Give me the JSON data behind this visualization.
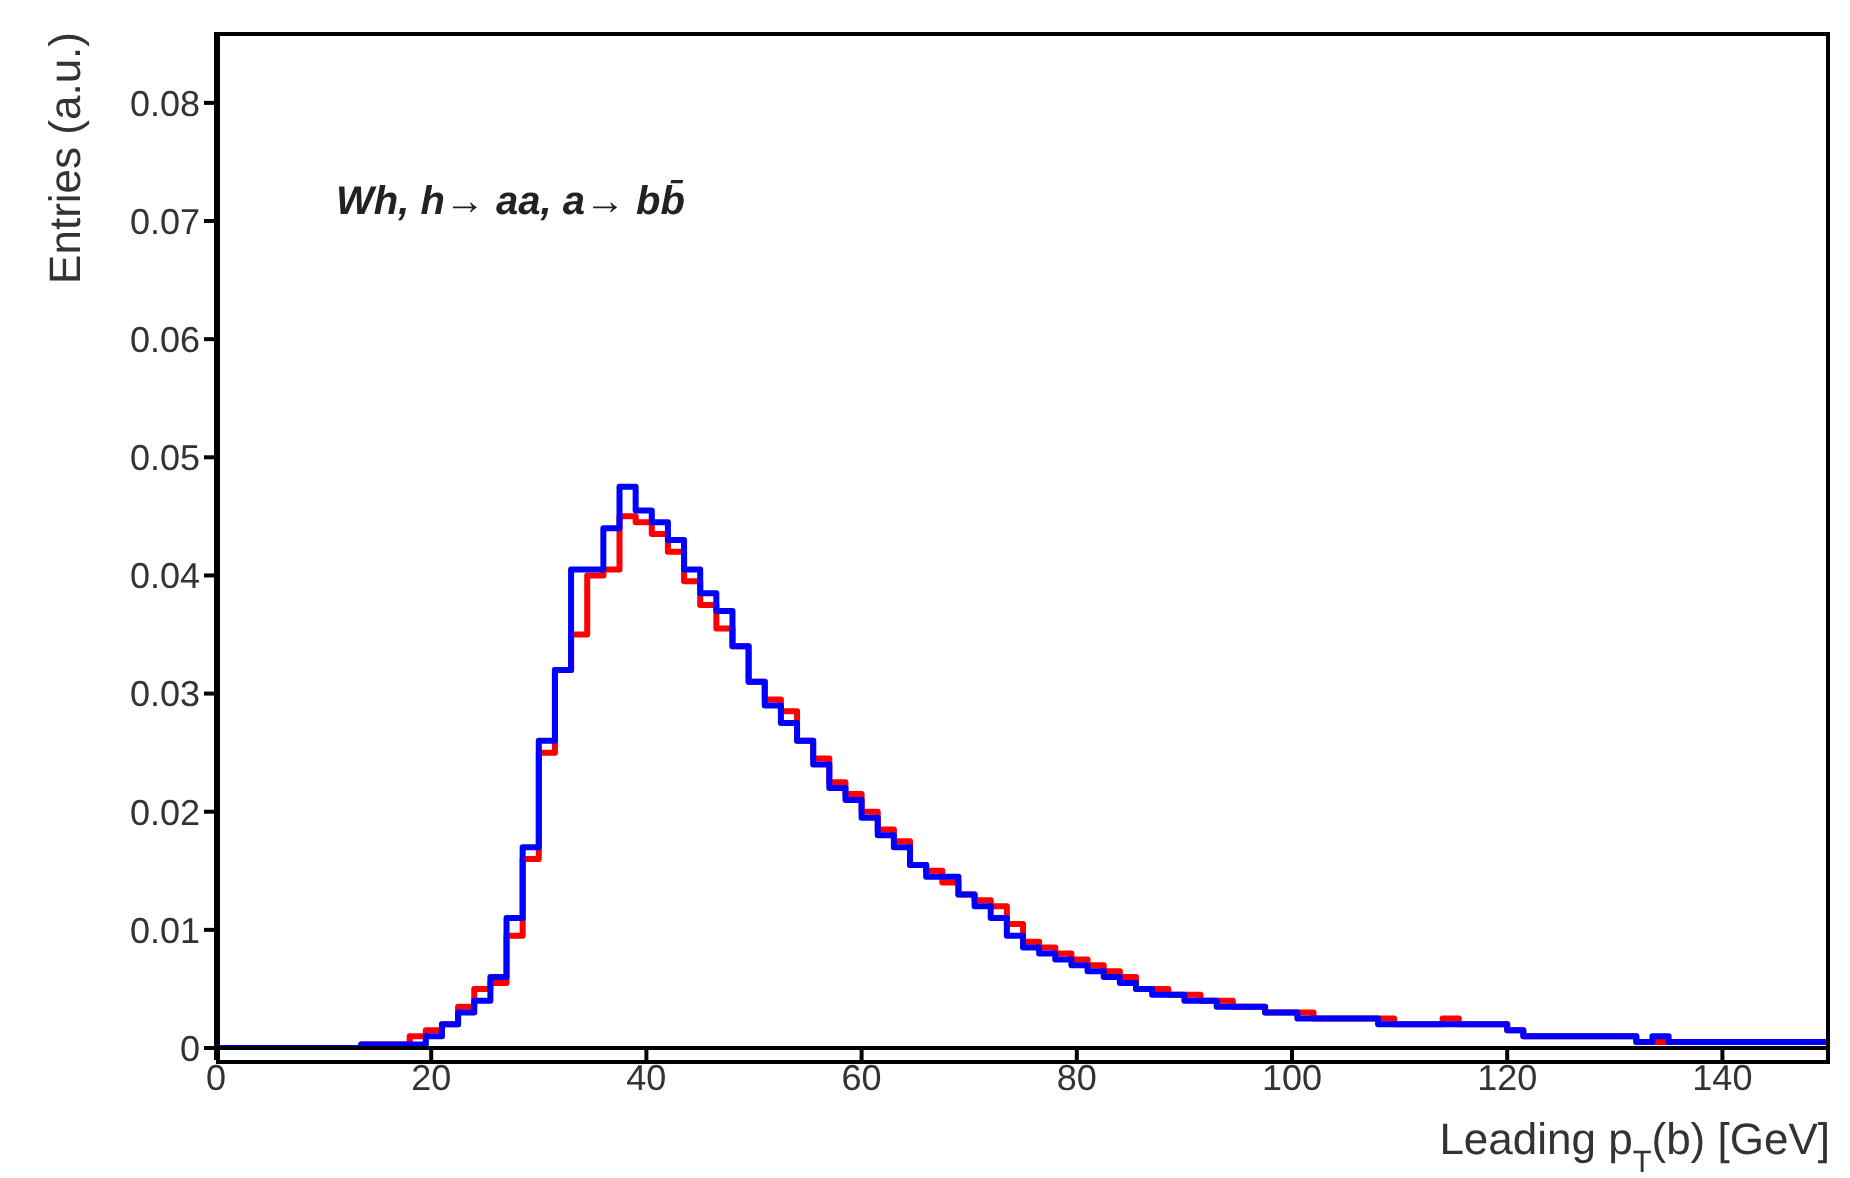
{
  "chart_data": {
    "type": "histogram",
    "xlabel": "Leading p$_{T}$(b) [GeV]",
    "ylabel": "Entries (a.u.)",
    "annotations": [
      "Wh, h→ aa, a→ bb̄"
    ],
    "bins": [
      0,
      1.5,
      3,
      4.5,
      6,
      7.5,
      9,
      10.5,
      12,
      13.5,
      15,
      16.5,
      18,
      19.5,
      21,
      22.5,
      24,
      25.5,
      27,
      28.5,
      30,
      31.5,
      33,
      34.5,
      36,
      37.5,
      39,
      40.5,
      42,
      43.5,
      45,
      46.5,
      48,
      49.5,
      51,
      52.5,
      54,
      55.5,
      57,
      58.5,
      60,
      61.5,
      63,
      64.5,
      66,
      67.5,
      69,
      70.5,
      72,
      73.5,
      75,
      76.5,
      78,
      79.5,
      81,
      82.5,
      84,
      85.5,
      87,
      88.5,
      90,
      91.5,
      93,
      94.5,
      96,
      97.5,
      99,
      100.5,
      102,
      103.5,
      105,
      106.5,
      108,
      109.5,
      111,
      112.5,
      114,
      115.5,
      117,
      118.5,
      120,
      121.5,
      123,
      124.5,
      126,
      127.5,
      129,
      130.5,
      132,
      133.5,
      135,
      136.5,
      138,
      139.5,
      141,
      142.5,
      144,
      145.5,
      147,
      148.5,
      150
    ],
    "series": [
      {
        "color": "#ff0000",
        "values": [
          0,
          0,
          0,
          0,
          0,
          0,
          0,
          0,
          0,
          0.0003,
          0.0003,
          0.0003,
          0.001,
          0.0015,
          0.002,
          0.0035,
          0.005,
          0.0055,
          0.0095,
          0.016,
          0.025,
          0.032,
          0.035,
          0.04,
          0.0405,
          0.045,
          0.0445,
          0.0435,
          0.042,
          0.0395,
          0.0375,
          0.0355,
          0.034,
          0.031,
          0.0295,
          0.0285,
          0.026,
          0.0245,
          0.0225,
          0.0215,
          0.02,
          0.0185,
          0.0175,
          0.0155,
          0.015,
          0.014,
          0.013,
          0.0125,
          0.012,
          0.0105,
          0.009,
          0.0085,
          0.008,
          0.0075,
          0.007,
          0.0065,
          0.006,
          0.005,
          0.005,
          0.0045,
          0.0045,
          0.004,
          0.004,
          0.0035,
          0.0035,
          0.003,
          0.003,
          0.003,
          0.0025,
          0.0025,
          0.0025,
          0.0025,
          0.0025,
          0.002,
          0.002,
          0.002,
          0.0025,
          0.002,
          0.002,
          0.002,
          0.0015,
          0.001,
          0.001,
          0.001,
          0.001,
          0.001,
          0.001,
          0.001,
          0.0005,
          0.0005,
          0.0005,
          0.0005,
          0.0005,
          0.0005,
          0.0005,
          0.0005,
          0.0005,
          0.0005,
          0.0005,
          0.0005
        ]
      },
      {
        "color": "#0000ff",
        "values": [
          0,
          0,
          0,
          0,
          0,
          0,
          0,
          0,
          0,
          0.0003,
          0.0003,
          0.0003,
          0.0003,
          0.001,
          0.002,
          0.003,
          0.004,
          0.006,
          0.011,
          0.017,
          0.026,
          0.032,
          0.0405,
          0.0405,
          0.044,
          0.0475,
          0.0455,
          0.0445,
          0.043,
          0.0405,
          0.0385,
          0.037,
          0.034,
          0.031,
          0.029,
          0.0275,
          0.026,
          0.024,
          0.022,
          0.021,
          0.0195,
          0.018,
          0.017,
          0.0155,
          0.0145,
          0.0145,
          0.013,
          0.012,
          0.011,
          0.0095,
          0.0085,
          0.008,
          0.0075,
          0.007,
          0.0065,
          0.006,
          0.0055,
          0.005,
          0.0045,
          0.0045,
          0.004,
          0.004,
          0.0035,
          0.0035,
          0.0035,
          0.003,
          0.003,
          0.0025,
          0.0025,
          0.0025,
          0.0025,
          0.0025,
          0.002,
          0.002,
          0.002,
          0.002,
          0.002,
          0.002,
          0.002,
          0.002,
          0.0015,
          0.001,
          0.001,
          0.001,
          0.001,
          0.001,
          0.001,
          0.001,
          0.0005,
          0.001,
          0.0005,
          0.0005,
          0.0005,
          0.0005,
          0.0005,
          0.0005,
          0.0005,
          0.0005,
          0.0005,
          0.0005
        ]
      }
    ],
    "xlim": [
      0,
      150
    ],
    "xticks": [
      0,
      20,
      40,
      60,
      80,
      100,
      120,
      140
    ],
    "ylim": [
      0,
      0.086
    ],
    "yticks": [
      0,
      0.01,
      0.02,
      0.03,
      0.04,
      0.05,
      0.06,
      0.07,
      0.08
    ]
  }
}
